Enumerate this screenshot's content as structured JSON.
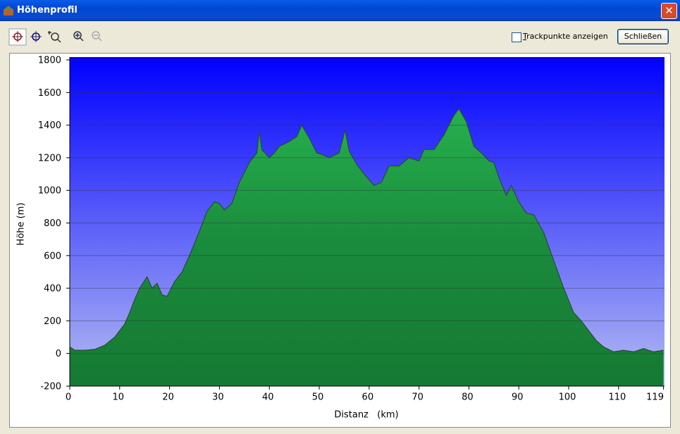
{
  "window": {
    "title": "Höhenprofil"
  },
  "toolbar": {
    "checkbox_label": "Trackpunkte anzeigen",
    "close_button": "Schließen"
  },
  "chart_data": {
    "type": "area",
    "x_label": "Distanz   (km)",
    "y_label": "Höhe (m)",
    "x": [
      0,
      1,
      3,
      5,
      7,
      9,
      11,
      12,
      13,
      14,
      15.5,
      16.5,
      17.5,
      18.5,
      19.5,
      21,
      22.5,
      24,
      26,
      27.5,
      29,
      30,
      31,
      32.5,
      34,
      36,
      37.5,
      38,
      38.5,
      40,
      41,
      42,
      44,
      45.5,
      46.5,
      48,
      49.5,
      50.5,
      52,
      54,
      55.2,
      56,
      57.5,
      59,
      61,
      62.5,
      64,
      66,
      68,
      70,
      71,
      73,
      75,
      77,
      78,
      79.5,
      81,
      82.5,
      84,
      85,
      86,
      87.5,
      88.5,
      90,
      91.5,
      93,
      95,
      97,
      99,
      101,
      102.5,
      104,
      105.5,
      107,
      109,
      111,
      113,
      115,
      117,
      119
    ],
    "values": [
      40,
      20,
      20,
      25,
      50,
      100,
      180,
      250,
      330,
      400,
      470,
      400,
      430,
      360,
      350,
      440,
      500,
      600,
      750,
      870,
      930,
      920,
      880,
      920,
      1050,
      1170,
      1230,
      1360,
      1250,
      1200,
      1230,
      1270,
      1300,
      1330,
      1400,
      1320,
      1230,
      1220,
      1200,
      1230,
      1370,
      1240,
      1160,
      1100,
      1030,
      1050,
      1150,
      1150,
      1200,
      1180,
      1250,
      1250,
      1340,
      1460,
      1500,
      1420,
      1270,
      1230,
      1180,
      1170,
      1080,
      970,
      1030,
      930,
      860,
      850,
      740,
      570,
      400,
      250,
      200,
      140,
      80,
      40,
      10,
      20,
      10,
      30,
      10,
      20
    ],
    "color": "#1f9a45",
    "xlim": [
      0,
      119.2
    ],
    "ylim": [
      -200,
      1800
    ],
    "xticks": [
      0,
      10,
      20,
      30,
      40,
      50,
      60,
      70,
      80,
      90,
      100,
      110,
      119
    ],
    "yticks": [
      -200,
      0,
      200,
      400,
      600,
      800,
      1000,
      1200,
      1400,
      1600,
      1800
    ],
    "grid": true
  }
}
